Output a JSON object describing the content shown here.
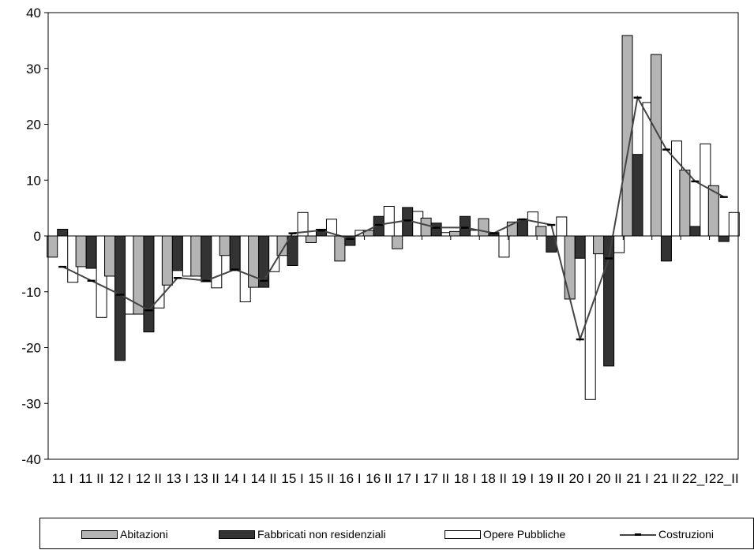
{
  "chart_data": {
    "type": "bar",
    "ylim": [
      -40,
      40
    ],
    "yticks": [
      -40,
      -30,
      -20,
      -10,
      0,
      10,
      20,
      30,
      40
    ],
    "grid": false,
    "legend_position": "bottom",
    "categories": [
      "11 I",
      "11 II",
      "12 I",
      "12 II",
      "13 I",
      "13 II",
      "14 I",
      "14 II",
      "15 I",
      "15 II",
      "16 I",
      "16 II",
      "17 I",
      "17 II",
      "18 I",
      "18 II",
      "19 I",
      "19 II",
      "20 I",
      "20 II",
      "21 I",
      "21 II",
      "22_I",
      "22_II"
    ],
    "tick_labels": [
      "11 I",
      "11 II",
      "12 I",
      "12 II",
      "13 I",
      "13 II",
      "14 I",
      "14 II",
      "15 I",
      "15 II",
      "16 I",
      "16 II",
      "17 I",
      "17 II",
      "18 I",
      "18 II",
      "19 I",
      "19 II",
      "20 I",
      "20 II",
      "21 I",
      "21 II",
      "22_I",
      "22_II"
    ],
    "series": [
      {
        "name": "Abitazioni",
        "kind": "bar",
        "color": "#b4b4b4",
        "values": [
          -3.8,
          -5.5,
          -7.2,
          -14,
          -8.8,
          -7.2,
          -3.5,
          -9.2,
          -3.5,
          -1.2,
          -4.5,
          1,
          -2.3,
          3.2,
          0.8,
          3.1,
          2.5,
          1.7,
          -11.3,
          -3.2,
          35.9,
          32.5,
          11.8,
          9
        ]
      },
      {
        "name": "Fabbricati non residenziali",
        "kind": "bar",
        "color": "#333333",
        "values": [
          1.2,
          -5.8,
          -22.3,
          -17.2,
          -6.2,
          -8.2,
          -6.2,
          -9.2,
          -5.3,
          1.2,
          -1.7,
          3.5,
          5.1,
          2.3,
          3.5,
          0.6,
          3,
          -2.9,
          -4,
          -23.3,
          14.6,
          -4.5,
          1.7,
          -1
        ]
      },
      {
        "name": "Opere Pubbliche",
        "kind": "bar",
        "color": "#ffffff",
        "values": [
          -8.3,
          -14.6,
          -14,
          -12.9,
          -7.2,
          -9.3,
          -11.8,
          -6.4,
          4.2,
          3,
          1,
          5.3,
          4.4,
          0.6,
          1,
          -3.8,
          4.3,
          3.4,
          -29.3,
          -3,
          23.9,
          17,
          16.5,
          4.2
        ]
      },
      {
        "name": "Costruzioni",
        "kind": "line",
        "color": "#444444",
        "values": [
          -5.5,
          -8,
          -10.5,
          -13.3,
          -7.5,
          -8,
          -6,
          -8,
          0.5,
          1,
          -0.5,
          2,
          2.8,
          1.5,
          1.5,
          0.5,
          3,
          2,
          -18.5,
          -4,
          24.8,
          15.5,
          9.8,
          7
        ]
      }
    ],
    "legend": {
      "abitazioni": "Abitazioni",
      "fabbricati": "Fabbricati non residenziali",
      "opere": "Opere Pubbliche",
      "costruzioni": "Costruzioni"
    }
  },
  "colors": {
    "axis": "#000000",
    "line": "#444444"
  }
}
